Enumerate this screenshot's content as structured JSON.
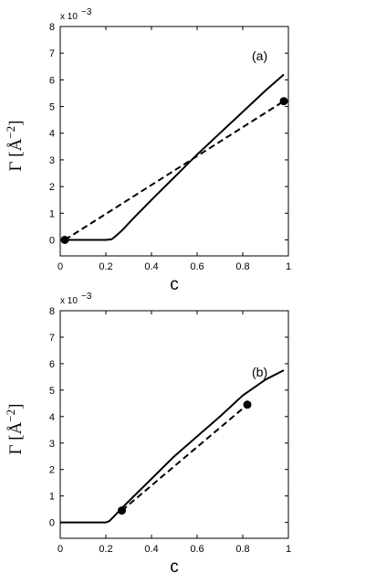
{
  "chart_data": [
    {
      "type": "line",
      "annotation": "(a)",
      "xlabel": "c",
      "ylabel": "Γ [Å",
      "ylabel_exponent": "−2",
      "ylabel_close": "]",
      "y_multiplier_label": "x 10",
      "y_multiplier_exponent": "−3",
      "xlim": [
        0,
        1
      ],
      "ylim": [
        -0.6,
        8
      ],
      "xticks": [
        0,
        0.2,
        0.4,
        0.6,
        0.8,
        1
      ],
      "xtick_labels": [
        "0",
        "0.2",
        "0.4",
        "0.6",
        "0.8",
        "1"
      ],
      "yticks": [
        0,
        1,
        2,
        3,
        4,
        5,
        6,
        7,
        8
      ],
      "ytick_labels": [
        "0",
        "1",
        "2",
        "3",
        "4",
        "5",
        "6",
        "7",
        "8"
      ],
      "series": [
        {
          "style": "solid",
          "x": [
            0.02,
            0.1,
            0.2,
            0.225,
            0.24,
            0.27,
            0.32,
            0.4,
            0.5,
            0.6,
            0.7,
            0.8,
            0.9,
            0.98
          ],
          "y": [
            0,
            0,
            0,
            0.02,
            0.12,
            0.35,
            0.8,
            1.5,
            2.35,
            3.2,
            4.0,
            4.8,
            5.6,
            6.2
          ]
        },
        {
          "style": "dashed",
          "x": [
            0.02,
            0.98
          ],
          "y": [
            0,
            5.2
          ]
        }
      ],
      "markers": [
        {
          "x": 0.02,
          "y": 0
        },
        {
          "x": 0.98,
          "y": 5.2
        }
      ]
    },
    {
      "type": "line",
      "annotation": "(b)",
      "xlabel": "c",
      "ylabel": "Γ [Å",
      "ylabel_exponent": "−2",
      "ylabel_close": "]",
      "y_multiplier_label": "x 10",
      "y_multiplier_exponent": "−3",
      "xlim": [
        0,
        1
      ],
      "ylim": [
        -0.6,
        8
      ],
      "xticks": [
        0,
        0.2,
        0.4,
        0.6,
        0.8,
        1
      ],
      "xtick_labels": [
        "0",
        "0.2",
        "0.4",
        "0.6",
        "0.8",
        "1"
      ],
      "yticks": [
        0,
        1,
        2,
        3,
        4,
        5,
        6,
        7,
        8
      ],
      "ytick_labels": [
        "0",
        "1",
        "2",
        "3",
        "4",
        "5",
        "6",
        "7",
        "8"
      ],
      "series": [
        {
          "style": "solid",
          "x": [
            0,
            0.1,
            0.2,
            0.215,
            0.23,
            0.26,
            0.3,
            0.4,
            0.5,
            0.6,
            0.7,
            0.8,
            0.9,
            0.98
          ],
          "y": [
            0,
            0,
            0,
            0.05,
            0.18,
            0.45,
            0.8,
            1.65,
            2.5,
            3.25,
            4.0,
            4.8,
            5.4,
            5.75
          ]
        },
        {
          "style": "dashed",
          "x": [
            0.27,
            0.82
          ],
          "y": [
            0.45,
            4.45
          ]
        }
      ],
      "markers": [
        {
          "x": 0.27,
          "y": 0.45
        },
        {
          "x": 0.82,
          "y": 4.45
        }
      ]
    }
  ]
}
